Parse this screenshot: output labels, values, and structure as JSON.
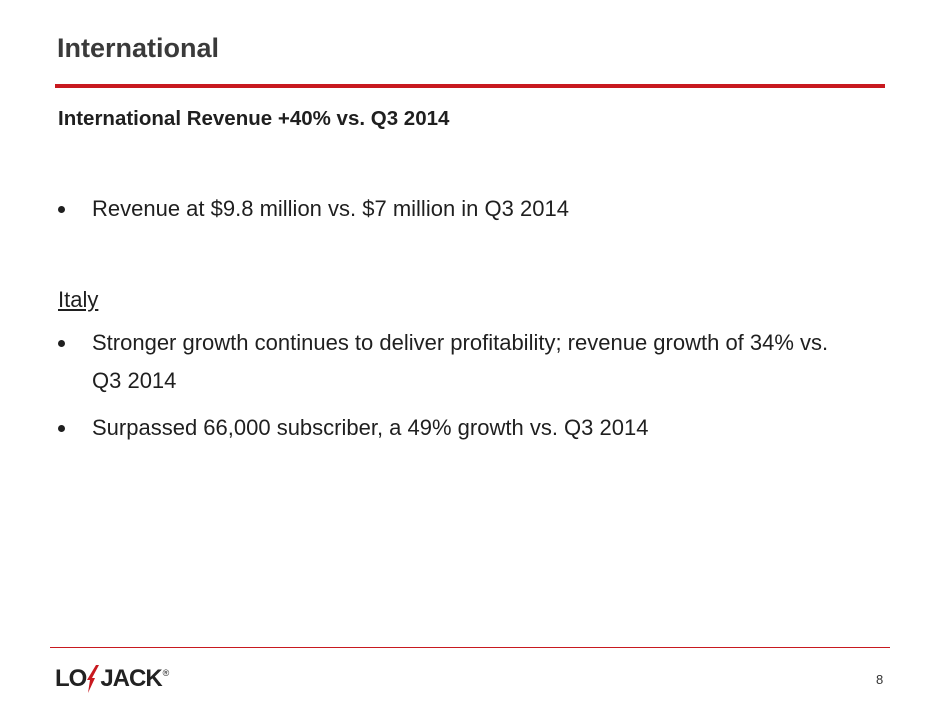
{
  "header": {
    "title": "International"
  },
  "subtitle": "International Revenue +40% vs. Q3 2014",
  "sections": [
    {
      "bullets": [
        "Revenue at $9.8 million vs. $7 million in Q3 2014"
      ]
    },
    {
      "heading": "Italy",
      "bullets": [
        "Stronger growth continues to deliver profitability; revenue growth of 34% vs. Q3 2014",
        "Surpassed 66,000 subscriber, a 49% growth vs. Q3 2014"
      ]
    }
  ],
  "footer": {
    "logo": {
      "left": "LO",
      "right": "JACK",
      "mark": "®"
    },
    "page_number": "8"
  }
}
